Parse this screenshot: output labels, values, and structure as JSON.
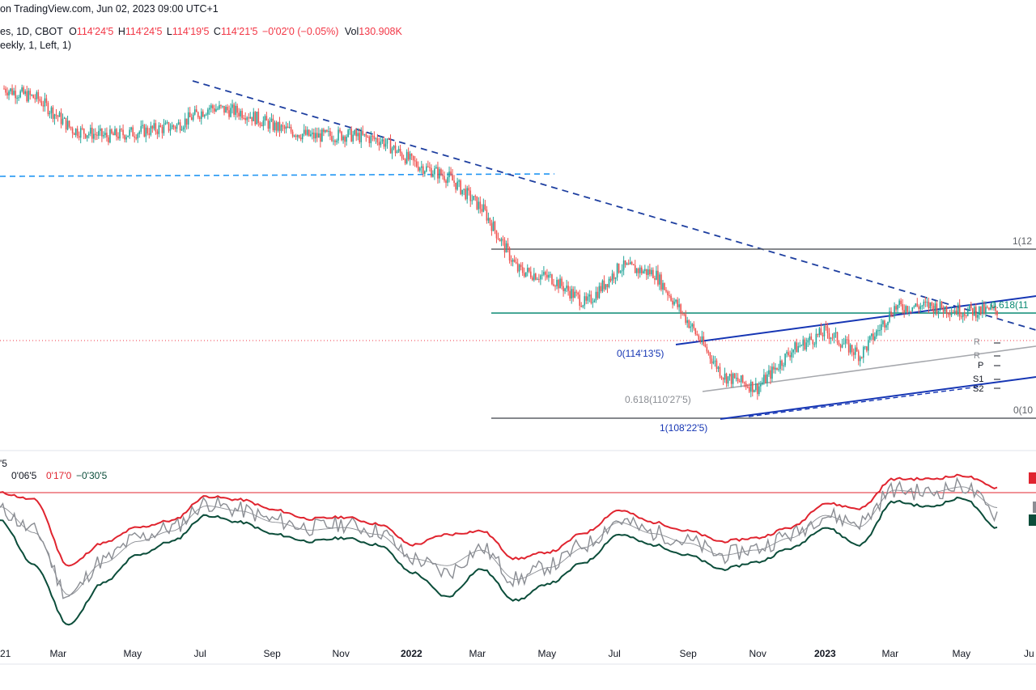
{
  "header": {
    "published": "on TradingView.com, Jun 02, 2023 09:00 UTC+1",
    "symbol": "es, 1D, CBOT",
    "o_label": "O",
    "o_value": "114'24'5",
    "h_label": "H",
    "h_value": "114'24'5",
    "l_label": "L",
    "l_value": "114'19'5",
    "c_label": "C",
    "c_value": "114'21'5",
    "change": "−0'02'0 (−0.05%)",
    "vol_label": "Vol",
    "vol_value": "130.908K",
    "indicator": "eekly, 1, Left, 1)"
  },
  "colors": {
    "up": "#26a69a",
    "down": "#ef5350",
    "trend": "#1e3fa0",
    "dashed_blue": "#2196f3",
    "channel": "#1636b4",
    "fib_green": "#0b8a74",
    "fib_gray": "#5d6066",
    "upper_band": "#e0242f",
    "lower_band": "#0b4d3a"
  },
  "price_labels": {
    "fib_one_top": "1(12",
    "fib_618_right": "0.618(11",
    "fib_zero_left": "0(114'13'5)",
    "fib_618_lower": "0.618(110'27'5)",
    "fib_one_low": "1(108'22'5)",
    "fib_zero_right": "0(10",
    "pivot_r": "R",
    "pivot_r2": "R",
    "pivot_p": "P",
    "pivot_s1": "S1",
    "pivot_s2": "S2"
  },
  "indicator_labels": {
    "top": "'5",
    "v1": "0'06'5",
    "v2": "0'17'0",
    "v3": "−0'30'5"
  },
  "x_axis": [
    "21",
    "Mar",
    "May",
    "Jul",
    "Sep",
    "Nov",
    "2022",
    "Mar",
    "May",
    "Jul",
    "Sep",
    "Nov",
    "2023",
    "Mar",
    "May",
    "Ju"
  ],
  "chart_data": [
    {
      "type": "candlestick",
      "title": "",
      "x": [
        "2021-01",
        "2021-02",
        "2021-03",
        "2021-04",
        "2021-05",
        "2021-06",
        "2021-07",
        "2021-08",
        "2021-09",
        "2021-10",
        "2021-11",
        "2021-12",
        "2022-01",
        "2022-02",
        "2022-03",
        "2022-04",
        "2022-05",
        "2022-06",
        "2022-07",
        "2022-08",
        "2022-09",
        "2022-10",
        "2022-11",
        "2022-12",
        "2023-01",
        "2023-02",
        "2023-03",
        "2023-04",
        "2023-05",
        "2023-06"
      ],
      "close_approx": [
        127.6,
        127.0,
        125.2,
        124.8,
        125.1,
        125.4,
        126.5,
        126.2,
        125.3,
        124.8,
        124.9,
        124.6,
        123.2,
        122.4,
        120.5,
        117.0,
        116.5,
        115.0,
        117.2,
        116.8,
        113.9,
        110.8,
        110.1,
        112.3,
        113.4,
        112.0,
        114.8,
        114.9,
        114.6,
        114.6
      ],
      "last": {
        "open": "114'24'5",
        "high": "114'24'5",
        "low": "114'19'5",
        "close": "114'21'5"
      },
      "fib_levels": [
        {
          "label": "1(12",
          "level": 1
        },
        {
          "label": "0.618(11",
          "level": 0.618
        },
        {
          "label": "0(114'13'5)",
          "level": 0
        },
        {
          "label": "0.618(110'27'5)",
          "level": 0.618
        },
        {
          "label": "1(108'22'5)",
          "level": 1
        },
        {
          "label": "0(10",
          "level": 0
        }
      ],
      "pivots": [
        "R",
        "R",
        "P",
        "S1",
        "S2"
      ],
      "x_ticks": [
        "21",
        "Mar",
        "May",
        "Jul",
        "Sep",
        "Nov",
        "2022",
        "Mar",
        "May",
        "Jul",
        "Sep",
        "Nov",
        "2023",
        "Mar",
        "May",
        "Ju"
      ]
    },
    {
      "type": "line",
      "title": "",
      "series": [
        {
          "name": "0'06'5",
          "values": [
            0.4,
            -0.8,
            -4.5,
            -2.5,
            -1.2,
            -0.6,
            0.8,
            0.4,
            -0.2,
            -0.6,
            -0.4,
            -0.8,
            -2.4,
            -3.2,
            -1.8,
            -3.6,
            -2.8,
            -1.6,
            -0.2,
            -0.9,
            -1.4,
            -2.2,
            -1.8,
            -1.0,
            0.1,
            -0.3,
            1.6,
            1.4,
            1.8,
            0.2
          ]
        },
        {
          "name": "0'17'0",
          "values": [
            1.4,
            1.0,
            -2.8,
            -1.5,
            -0.6,
            -0.2,
            1.2,
            1.0,
            0.4,
            -0.1,
            0.0,
            -0.4,
            -1.6,
            -1.0,
            -0.8,
            -2.4,
            -2.0,
            -0.9,
            0.4,
            -0.3,
            -0.8,
            -1.4,
            -1.2,
            -0.6,
            0.8,
            0.5,
            2.2,
            2.2,
            2.4,
            1.7
          ]
        },
        {
          "name": "−0'30'5",
          "values": [
            -0.2,
            -2.8,
            -6.2,
            -3.8,
            -2.2,
            -1.4,
            0.1,
            -0.3,
            -1.0,
            -1.4,
            -1.2,
            -1.6,
            -3.2,
            -4.6,
            -3.0,
            -4.8,
            -3.8,
            -2.6,
            -1.0,
            -1.6,
            -2.2,
            -3.0,
            -2.6,
            -1.8,
            -0.6,
            -1.6,
            0.9,
            0.6,
            1.1,
            -0.6
          ]
        }
      ],
      "reference_line": 1.3
    }
  ]
}
